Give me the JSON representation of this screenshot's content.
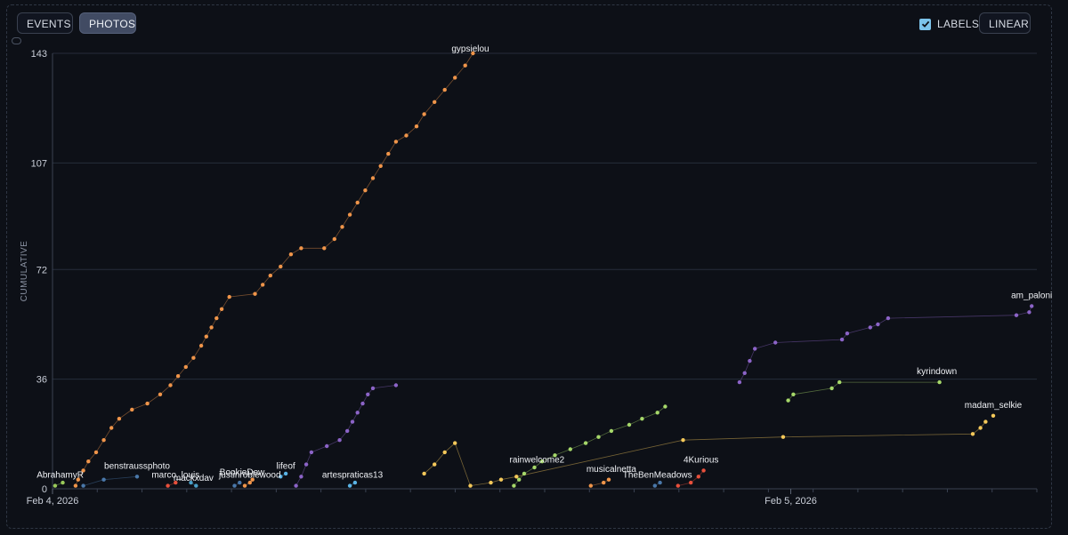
{
  "controls": {
    "tabs": [
      {
        "label": "EVENTS",
        "active": false
      },
      {
        "label": "PHOTOS",
        "active": true
      }
    ],
    "labels_toggle": {
      "label": "LABELS",
      "checked": true
    },
    "scale_button": "LINEAR"
  },
  "chart_data": {
    "type": "scatter",
    "title": "",
    "xlabel": "",
    "ylabel": "CUMULATIVE",
    "x_range": [
      "2026-02-04T00:00",
      "2026-02-05T08:00"
    ],
    "ylim": [
      0,
      143
    ],
    "y_ticks": [
      0,
      36,
      72,
      107,
      143
    ],
    "x_ticks": [
      {
        "label": "Feb 4, 2026",
        "value": "2026-02-04T00:00"
      },
      {
        "label": "Feb 5, 2026",
        "value": "2026-02-05T00:00"
      }
    ],
    "grid": true,
    "series": [
      {
        "name": "gypsielou",
        "color": "#f0954a",
        "points": [
          [
            "2026-02-04T00:45",
            1
          ],
          [
            "2026-02-04T00:50",
            3
          ],
          [
            "2026-02-04T01:00",
            6
          ],
          [
            "2026-02-04T01:10",
            9
          ],
          [
            "2026-02-04T01:25",
            12
          ],
          [
            "2026-02-04T01:40",
            16
          ],
          [
            "2026-02-04T01:55",
            20
          ],
          [
            "2026-02-04T02:10",
            23
          ],
          [
            "2026-02-04T02:35",
            26
          ],
          [
            "2026-02-04T03:05",
            28
          ],
          [
            "2026-02-04T03:30",
            31
          ],
          [
            "2026-02-04T03:50",
            34
          ],
          [
            "2026-02-04T04:05",
            37
          ],
          [
            "2026-02-04T04:20",
            40
          ],
          [
            "2026-02-04T04:35",
            43
          ],
          [
            "2026-02-04T04:50",
            47
          ],
          [
            "2026-02-04T05:00",
            50
          ],
          [
            "2026-02-04T05:10",
            53
          ],
          [
            "2026-02-04T05:20",
            56
          ],
          [
            "2026-02-04T05:30",
            59
          ],
          [
            "2026-02-04T05:45",
            63
          ],
          [
            "2026-02-04T06:35",
            64
          ],
          [
            "2026-02-04T06:50",
            67
          ],
          [
            "2026-02-04T07:05",
            70
          ],
          [
            "2026-02-04T07:25",
            73
          ],
          [
            "2026-02-04T07:45",
            77
          ],
          [
            "2026-02-04T08:05",
            79
          ],
          [
            "2026-02-04T08:50",
            79
          ],
          [
            "2026-02-04T09:10",
            82
          ],
          [
            "2026-02-04T09:25",
            86
          ],
          [
            "2026-02-04T09:40",
            90
          ],
          [
            "2026-02-04T09:55",
            94
          ],
          [
            "2026-02-04T10:10",
            98
          ],
          [
            "2026-02-04T10:25",
            102
          ],
          [
            "2026-02-04T10:40",
            106
          ],
          [
            "2026-02-04T10:55",
            110
          ],
          [
            "2026-02-04T11:10",
            114
          ],
          [
            "2026-02-04T11:30",
            116
          ],
          [
            "2026-02-04T11:50",
            119
          ],
          [
            "2026-02-04T12:05",
            123
          ],
          [
            "2026-02-04T12:25",
            127
          ],
          [
            "2026-02-04T12:45",
            131
          ],
          [
            "2026-02-04T13:05",
            135
          ],
          [
            "2026-02-04T13:25",
            139
          ],
          [
            "2026-02-04T13:40",
            143
          ]
        ]
      },
      {
        "name": "(unlabeled purple)",
        "color": "#8c64c8",
        "points": [
          [
            "2026-02-04T07:55",
            1
          ],
          [
            "2026-02-04T08:05",
            4
          ],
          [
            "2026-02-04T08:15",
            8
          ],
          [
            "2026-02-04T08:25",
            12
          ],
          [
            "2026-02-04T08:55",
            14
          ],
          [
            "2026-02-04T09:20",
            16
          ],
          [
            "2026-02-04T09:35",
            19
          ],
          [
            "2026-02-04T09:45",
            22
          ],
          [
            "2026-02-04T09:55",
            25
          ],
          [
            "2026-02-04T10:05",
            28
          ],
          [
            "2026-02-04T10:15",
            31
          ],
          [
            "2026-02-04T10:25",
            33
          ],
          [
            "2026-02-04T11:10",
            34
          ]
        ]
      },
      {
        "name": "am_paloni",
        "color": "#8c64c8",
        "points": [
          [
            "2026-02-04T22:20",
            35
          ],
          [
            "2026-02-04T22:30",
            38
          ],
          [
            "2026-02-04T22:40",
            42
          ],
          [
            "2026-02-04T22:50",
            46
          ],
          [
            "2026-02-04T23:30",
            48
          ],
          [
            "2026-02-05T01:40",
            49
          ],
          [
            "2026-02-05T01:50",
            51
          ],
          [
            "2026-02-05T02:35",
            53
          ],
          [
            "2026-02-05T02:50",
            54
          ],
          [
            "2026-02-05T03:10",
            56
          ],
          [
            "2026-02-05T07:20",
            57
          ],
          [
            "2026-02-05T07:45",
            58
          ],
          [
            "2026-02-05T07:50",
            60
          ]
        ]
      },
      {
        "name": "(unlabeled yellow)",
        "color": "#f4c85a",
        "points": [
          [
            "2026-02-04T12:05",
            5
          ],
          [
            "2026-02-04T12:25",
            8
          ],
          [
            "2026-02-04T12:45",
            12
          ],
          [
            "2026-02-04T13:05",
            15
          ],
          [
            "2026-02-04T13:35",
            1
          ],
          [
            "2026-02-04T14:15",
            2
          ],
          [
            "2026-02-04T14:35",
            3
          ],
          [
            "2026-02-04T15:05",
            4
          ],
          [
            "2026-02-04T20:30",
            16
          ],
          [
            "2026-02-04T23:45",
            17
          ],
          [
            "2026-02-05T05:55",
            18
          ],
          [
            "2026-02-05T06:10",
            20
          ],
          [
            "2026-02-05T06:20",
            22
          ]
        ]
      },
      {
        "name": "madam_selkie",
        "color": "#f4c85a",
        "points": [
          [
            "2026-02-05T06:35",
            24
          ]
        ]
      },
      {
        "name": "rainwelcome2",
        "color": "#a6d86a",
        "points": [
          [
            "2026-02-04T15:00",
            1
          ],
          [
            "2026-02-04T15:10",
            3
          ],
          [
            "2026-02-04T15:20",
            5
          ],
          [
            "2026-02-04T15:40",
            7
          ],
          [
            "2026-02-04T15:55",
            9
          ],
          [
            "2026-02-04T16:20",
            11
          ],
          [
            "2026-02-04T16:50",
            13
          ],
          [
            "2026-02-04T17:20",
            15
          ],
          [
            "2026-02-04T17:45",
            17
          ],
          [
            "2026-02-04T18:10",
            19
          ],
          [
            "2026-02-04T18:45",
            21
          ],
          [
            "2026-02-04T19:10",
            23
          ],
          [
            "2026-02-04T19:40",
            25
          ],
          [
            "2026-02-04T19:55",
            27
          ]
        ]
      },
      {
        "name": "kyrindown",
        "color": "#a6d86a",
        "points": [
          [
            "2026-02-04T23:55",
            29
          ],
          [
            "2026-02-05T00:05",
            31
          ],
          [
            "2026-02-05T01:20",
            33
          ],
          [
            "2026-02-05T01:35",
            35
          ],
          [
            "2026-02-05T04:50",
            35
          ]
        ]
      },
      {
        "name": "musicalnetta",
        "color": "#f0954a",
        "points": [
          [
            "2026-02-04T17:30",
            1
          ],
          [
            "2026-02-04T17:55",
            2
          ],
          [
            "2026-02-04T18:05",
            3
          ]
        ]
      },
      {
        "name": "TheBenMeadows",
        "color": "#4a78aa",
        "points": [
          [
            "2026-02-04T19:35",
            1
          ],
          [
            "2026-02-04T19:45",
            2
          ]
        ]
      },
      {
        "name": "4Kurious",
        "color": "#e8503c",
        "points": [
          [
            "2026-02-04T20:20",
            1
          ],
          [
            "2026-02-04T20:45",
            2
          ],
          [
            "2026-02-04T21:00",
            4
          ],
          [
            "2026-02-04T21:10",
            6
          ]
        ]
      },
      {
        "name": "AbrahamyR",
        "color": "#9aca5a",
        "points": [
          [
            "2026-02-04T00:05",
            1
          ],
          [
            "2026-02-04T00:20",
            2
          ]
        ]
      },
      {
        "name": "benstraussphoto",
        "color": "#4a78aa",
        "points": [
          [
            "2026-02-04T01:00",
            1
          ],
          [
            "2026-02-04T01:40",
            3
          ],
          [
            "2026-02-04T02:45",
            4
          ]
        ]
      },
      {
        "name": "marco_louis",
        "color": "#e8503c",
        "points": [
          [
            "2026-02-04T03:45",
            1
          ],
          [
            "2026-02-04T04:00",
            2
          ]
        ]
      },
      {
        "name": "mackxdav",
        "color": "#4aa0c8",
        "points": [
          [
            "2026-02-04T04:30",
            2
          ],
          [
            "2026-02-04T04:40",
            1
          ]
        ]
      },
      {
        "name": "justinroblewood",
        "color": "#f0954a",
        "points": [
          [
            "2026-02-04T06:15",
            1
          ],
          [
            "2026-02-04T06:25",
            2
          ],
          [
            "2026-02-04T06:30",
            3
          ]
        ]
      },
      {
        "name": "BookieDew",
        "color": "#4a78aa",
        "points": [
          [
            "2026-02-04T05:55",
            1
          ],
          [
            "2026-02-04T06:05",
            2
          ]
        ]
      },
      {
        "name": "lifeof",
        "color": "#5ab4e6",
        "points": [
          [
            "2026-02-04T07:25",
            4
          ],
          [
            "2026-02-04T07:35",
            5
          ]
        ]
      },
      {
        "name": "artespraticas13",
        "color": "#5ab4e6",
        "points": [
          [
            "2026-02-04T09:40",
            1
          ],
          [
            "2026-02-04T09:50",
            2
          ]
        ]
      }
    ],
    "point_labels": [
      {
        "text": "gypsielou",
        "x": "2026-02-04T13:35",
        "y": 143
      },
      {
        "text": "AbrahamyR",
        "x": "2026-02-04T00:15",
        "y": 3
      },
      {
        "text": "benstraussphoto",
        "x": "2026-02-04T02:45",
        "y": 6
      },
      {
        "text": "marco_louis",
        "x": "2026-02-04T04:00",
        "y": 3
      },
      {
        "text": "mackxdav",
        "x": "2026-02-04T04:35",
        "y": 2
      },
      {
        "text": "BookieDew",
        "x": "2026-02-04T06:10",
        "y": 4
      },
      {
        "text": "justinroblewood",
        "x": "2026-02-04T06:25",
        "y": 3
      },
      {
        "text": "lifeof",
        "x": "2026-02-04T07:35",
        "y": 6
      },
      {
        "text": "artespraticas13",
        "x": "2026-02-04T09:45",
        "y": 3
      },
      {
        "text": "rainwelcome2",
        "x": "2026-02-04T15:45",
        "y": 8
      },
      {
        "text": "musicalnetta",
        "x": "2026-02-04T18:10",
        "y": 5
      },
      {
        "text": "TheBenMeadows",
        "x": "2026-02-04T19:40",
        "y": 3
      },
      {
        "text": "4Kurious",
        "x": "2026-02-04T21:05",
        "y": 8
      },
      {
        "text": "kyrindown",
        "x": "2026-02-05T04:45",
        "y": 37
      },
      {
        "text": "madam_selkie",
        "x": "2026-02-05T06:35",
        "y": 26
      },
      {
        "text": "am_paloni",
        "x": "2026-02-05T07:50",
        "y": 62
      }
    ]
  }
}
